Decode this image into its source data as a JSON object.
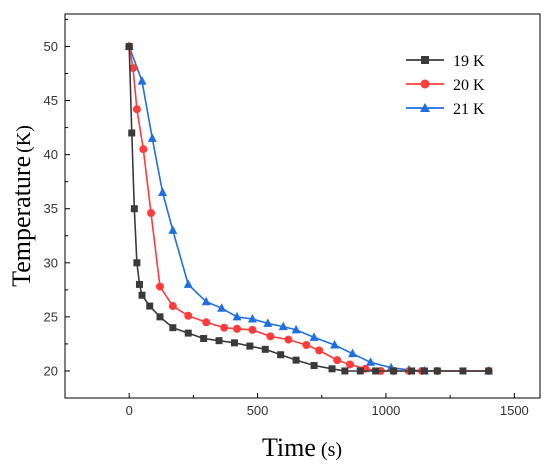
{
  "chart_data": {
    "type": "line",
    "xlabel_main": "Time",
    "xlabel_unit": "(s)",
    "ylabel_main": "Temperature",
    "ylabel_unit": "(K)",
    "xlim": [
      -250,
      1600
    ],
    "ylim": [
      17.5,
      53
    ],
    "x_ticks": [
      0,
      500,
      1000,
      1500
    ],
    "y_ticks": [
      20,
      25,
      30,
      35,
      40,
      45,
      50
    ],
    "grid": false,
    "legend_position": "top-right",
    "series": [
      {
        "name": "19 K",
        "color": "#3a3a3a",
        "marker": "square",
        "x": [
          0,
          10,
          20,
          30,
          40,
          50,
          80,
          120,
          170,
          230,
          290,
          350,
          410,
          470,
          530,
          590,
          650,
          720,
          790,
          840,
          900,
          960,
          1030,
          1100,
          1150,
          1200,
          1300,
          1400
        ],
        "y": [
          50,
          42,
          35,
          30,
          28,
          27,
          26,
          25,
          24,
          23.5,
          23,
          22.8,
          22.6,
          22.3,
          22.0,
          21.5,
          21.0,
          20.5,
          20.2,
          20.0,
          20.0,
          20.0,
          20.0,
          20.0,
          20.0,
          20.0,
          20.0,
          20.0
        ]
      },
      {
        "name": "20 K",
        "color": "#ff3b3b",
        "marker": "circle",
        "x": [
          0,
          15,
          30,
          55,
          85,
          120,
          170,
          230,
          300,
          370,
          420,
          480,
          550,
          620,
          690,
          740,
          810,
          860,
          920,
          980,
          1030,
          1090,
          1140,
          1200,
          1400
        ],
        "y": [
          50,
          48,
          44.2,
          40.5,
          34.6,
          27.8,
          26,
          25.1,
          24.5,
          24,
          23.9,
          23.8,
          23.2,
          22.9,
          22.4,
          21.9,
          21.0,
          20.6,
          20.2,
          20.0,
          20.0,
          20.0,
          20.0,
          20.0,
          20.0
        ]
      },
      {
        "name": "21 K",
        "color": "#1f6fe0",
        "marker": "triangle",
        "x": [
          0,
          50,
          90,
          130,
          170,
          230,
          300,
          360,
          420,
          480,
          540,
          600,
          650,
          720,
          800,
          870,
          940,
          1020,
          1090,
          1150,
          1400
        ],
        "y": [
          50,
          46.8,
          41.5,
          36.5,
          33.0,
          28,
          26.4,
          25.8,
          25.0,
          24.8,
          24.4,
          24.1,
          23.8,
          23.1,
          22.4,
          21.6,
          20.8,
          20.3,
          20.1,
          20.0,
          20.0
        ]
      }
    ]
  }
}
